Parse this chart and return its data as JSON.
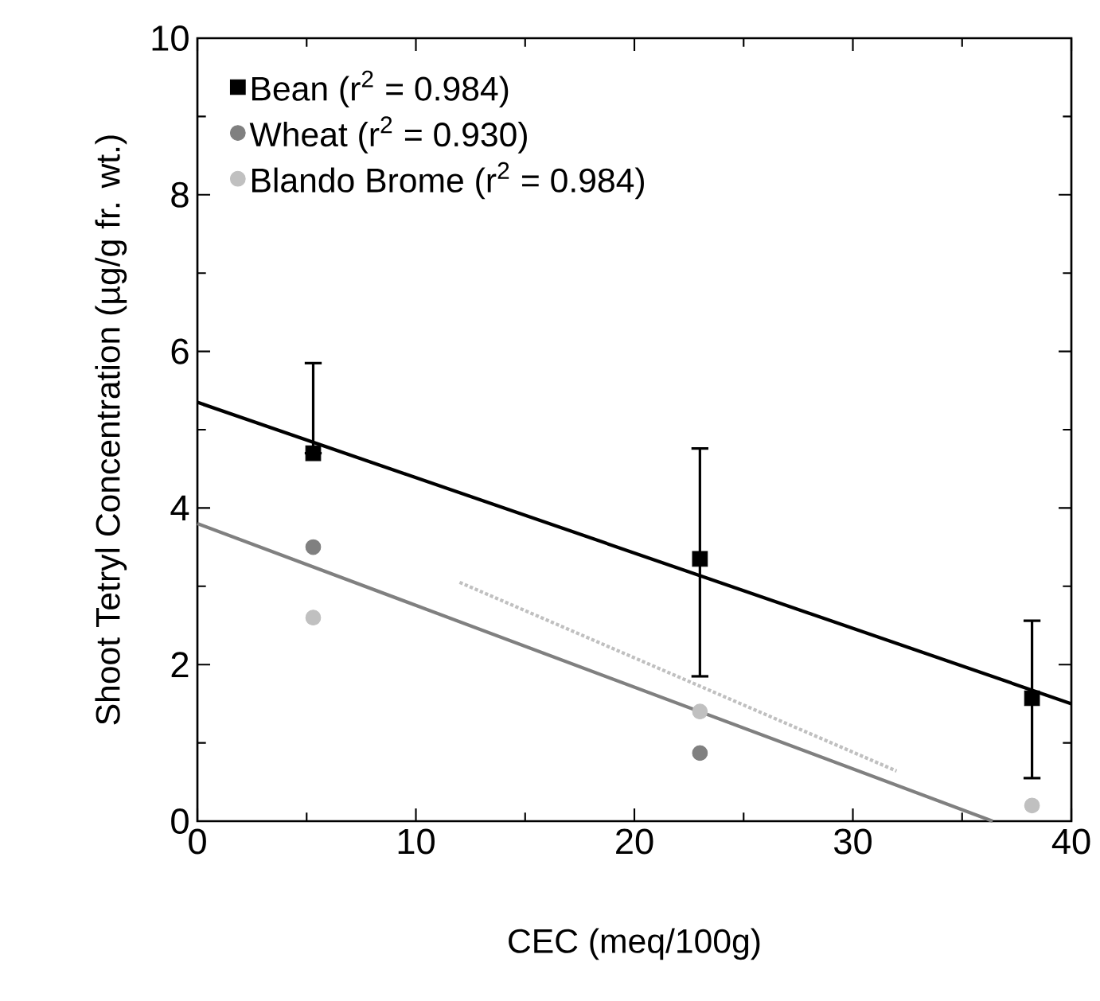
{
  "chart_data": {
    "type": "scatter",
    "xlabel": "CEC (meq/100g)",
    "ylabel": "Shoot Tetryl Concentration (µg/g fr. wt.)",
    "xlim": [
      0,
      40
    ],
    "ylim": [
      0,
      10
    ],
    "xticks": [
      0,
      10,
      20,
      30,
      40
    ],
    "yticks": [
      0,
      2,
      4,
      6,
      8,
      10
    ],
    "legend": "top left",
    "series": [
      {
        "name": "Bean  (r$^{2}$ = 0.984)",
        "color": "#000000",
        "marker": "square",
        "x": [
          5.3,
          23,
          38.2
        ],
        "values": [
          4.7,
          3.35,
          1.57
        ],
        "errors": [
          [
            4.7,
            5.85
          ],
          [
            1.85,
            4.76
          ],
          [
            0.55,
            2.56
          ]
        ]
      },
      {
        "name": "Wheat  (r$^{2}$ = 0.930)",
        "color": "#808080",
        "marker": "circle",
        "x": [
          5.3,
          23
        ],
        "values": [
          3.5,
          0.87
        ]
      },
      {
        "name": "Blando Brome (r$^{2}$ = 0.984)",
        "color": "#c0c0c0",
        "marker": "circle",
        "x": [
          5.3,
          23,
          38.2
        ],
        "values": [
          2.6,
          1.4,
          0.2
        ]
      },
      {
        "type": "line",
        "color": "#000000",
        "marker": "none",
        "line_style": "solid",
        "x": [
          0,
          40
        ],
        "values": [
          5.35,
          1.5
        ]
      },
      {
        "type": "line",
        "color": "#808080",
        "marker": "none",
        "line_style": "solid",
        "x": [
          0,
          36.4
        ],
        "values": [
          3.8,
          0
        ]
      },
      {
        "type": "line",
        "color": "#c0c0c0",
        "marker": "none",
        "line_style": "dotted",
        "x": [
          12,
          32
        ],
        "values": [
          3.05,
          0.64
        ]
      }
    ]
  }
}
